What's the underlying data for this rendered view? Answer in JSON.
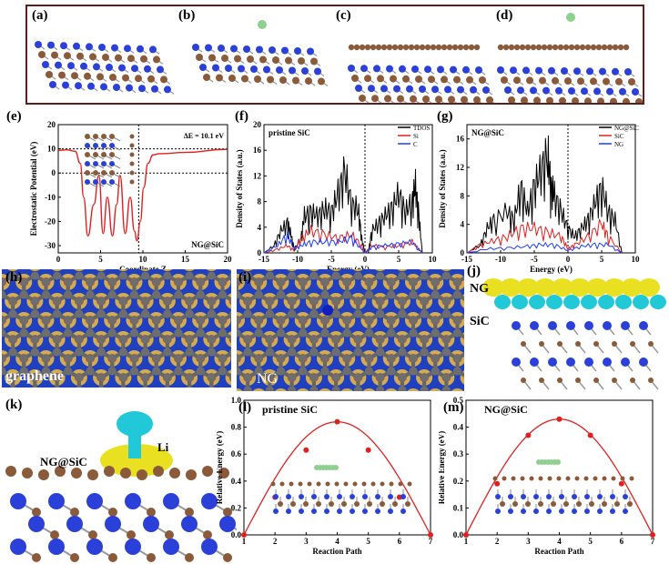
{
  "panels": {
    "a": "(a)",
    "b": "(b)",
    "c": "(c)",
    "d": "(d)",
    "e": "(e)",
    "f": "(f)",
    "g": "(g)",
    "h": "(h)",
    "i": "(i)",
    "j": "(j)",
    "k": "(k)",
    "l": "(l)",
    "m": "(m)"
  },
  "labels": {
    "graphene": "graphene",
    "ng_i": "NG",
    "ng_j": "NG",
    "sic_j": "SiC",
    "li": "Li",
    "ngsic_k": "NG@SiC"
  },
  "colors": {
    "frame": "#5a2020",
    "curve_red": "#e02020",
    "tdos": "#000000",
    "si": "#e02020",
    "c": "#1a3cff",
    "bg_blue": "#2040c0",
    "atom_blue": "#2a40d8",
    "atom_brown": "#8a5a3a",
    "isosurface_yellow": "#e8e020",
    "isosurface_cyan": "#20c8d8"
  },
  "chart_data": [
    {
      "id": "e",
      "type": "line",
      "xlabel": "Coordinate Z",
      "ylabel": "Electrostatic Potential (eV)",
      "annotation": "ΔE = 10.1 eV",
      "label": "NG@SiC",
      "xlim": [
        0,
        20
      ],
      "ylim": [
        -33,
        20
      ],
      "xticks": [
        "0",
        "5",
        "10",
        "15",
        "20"
      ],
      "yticks": [
        "-30",
        "-20",
        "-10",
        "0",
        "10",
        "20"
      ],
      "hlines": [
        10,
        0
      ],
      "vline": 9.5,
      "x": [
        0,
        1,
        2,
        2.6,
        3,
        3.5,
        4.2,
        4.8,
        5.3,
        5.8,
        6.4,
        6.9,
        7.3,
        7.9,
        8.5,
        9.0,
        9.3,
        9.7,
        10.1,
        10.6,
        11.2,
        12,
        15,
        20
      ],
      "y": [
        9.3,
        9.6,
        9,
        4,
        -10,
        -26,
        -13,
        -1,
        -25,
        -10,
        -26,
        -13,
        -1,
        -25,
        -10,
        -24,
        -28,
        -20,
        -6,
        4,
        7.5,
        8,
        8.5,
        9.8
      ]
    },
    {
      "id": "f",
      "type": "line",
      "title": "pristine SiC",
      "xlabel": "Energy (eV)",
      "ylabel": "Density of States (a.u.)",
      "xlim": [
        -15,
        10
      ],
      "ylim": [
        0,
        20
      ],
      "xticks": [
        "-15",
        "-10",
        "-5",
        "0",
        "5",
        "10"
      ],
      "yticks": [
        "0",
        "4",
        "8",
        "12",
        "16",
        "20"
      ],
      "legend": [
        "TDOS",
        "Si",
        "C"
      ],
      "series": [
        {
          "name": "TDOS",
          "x": [
            -15,
            -13.5,
            -12.5,
            -11.5,
            -11,
            -10.5,
            -9.5,
            -9,
            -8,
            -7,
            -6,
            -5,
            -4,
            -3,
            -2,
            -1,
            -0.5,
            0,
            0.5,
            1,
            2,
            3,
            4,
            5,
            6,
            7,
            7.5,
            8,
            8.5
          ],
          "y": [
            0,
            1,
            3,
            4,
            2.5,
            0.5,
            2,
            5,
            5.5,
            5,
            6,
            5.5,
            8,
            11,
            6.5,
            6,
            2,
            0,
            0,
            3,
            4,
            5,
            6,
            8,
            5.5,
            7,
            9,
            5,
            0
          ]
        },
        {
          "name": "Si",
          "x": [
            -15,
            -13,
            -11.5,
            -10.5,
            -9.5,
            -8,
            -6,
            -4,
            -2,
            -0.5,
            0,
            1,
            3,
            5,
            7,
            8.5
          ],
          "y": [
            0,
            0.5,
            1,
            0.3,
            2,
            3,
            2.5,
            2,
            2.5,
            1,
            0,
            1,
            0.8,
            1,
            1.5,
            0
          ]
        },
        {
          "name": "C",
          "x": [
            -15,
            -13,
            -11.5,
            -10.5,
            -9.5,
            -8,
            -6,
            -4,
            -2,
            -0.5,
            0,
            1,
            3,
            5,
            7,
            8.5
          ],
          "y": [
            0,
            1,
            2.5,
            0.5,
            1,
            1.5,
            1.5,
            1.5,
            2,
            0.5,
            0,
            0.8,
            1,
            1.2,
            1.5,
            0
          ]
        }
      ]
    },
    {
      "id": "g",
      "type": "line",
      "title": "NG@SiC",
      "xlabel": "Energy (eV)",
      "ylabel": "Density of States (a.u.)",
      "xlim": [
        -15,
        10
      ],
      "ylim": [
        0,
        18
      ],
      "xticks": [
        "-15",
        "-10",
        "-5",
        "0",
        "5",
        "10"
      ],
      "yticks": [
        "0",
        "4",
        "8",
        "12",
        "16"
      ],
      "legend": [
        "NG@SiC",
        "SiC",
        "NG"
      ],
      "series": [
        {
          "name": "NG@SiC",
          "x": [
            -15,
            -13,
            -12,
            -11,
            -9,
            -8,
            -7,
            -6,
            -5,
            -4,
            -3,
            -2.5,
            -2,
            -1,
            0,
            1,
            2,
            3,
            4,
            5,
            6,
            7,
            8
          ],
          "y": [
            0,
            1,
            3,
            4,
            5,
            4,
            8,
            5,
            8,
            10,
            12,
            8,
            7,
            5,
            3,
            2,
            3,
            4,
            6,
            8,
            5,
            4,
            0
          ]
        },
        {
          "name": "SiC",
          "x": [
            -15,
            -13,
            -11,
            -9,
            -7,
            -5,
            -3,
            -1,
            0,
            1,
            3,
            5,
            6,
            8
          ],
          "y": [
            0,
            1,
            1.5,
            2,
            3,
            3,
            2.5,
            2,
            0.5,
            1,
            2,
            3.5,
            2,
            0
          ]
        },
        {
          "name": "NG",
          "x": [
            -15,
            -12,
            -9,
            -6,
            -4,
            -2,
            0,
            2,
            4,
            6,
            8
          ],
          "y": [
            0,
            0.5,
            0.6,
            0.8,
            1,
            1,
            0.3,
            0.8,
            1,
            1,
            0
          ]
        }
      ]
    },
    {
      "id": "l",
      "type": "line",
      "title": "pristine SiC",
      "xlabel": "Reaction Path",
      "ylabel": "Relative Energy (eV)",
      "xlim": [
        1,
        7
      ],
      "ylim": [
        0,
        1.0
      ],
      "xticks": [
        "1",
        "2",
        "3",
        "4",
        "5",
        "6",
        "7"
      ],
      "yticks": [
        "0.0",
        "0.2",
        "0.4",
        "0.6",
        "0.8",
        "1.0"
      ],
      "x": [
        1,
        2,
        3,
        4,
        5,
        6,
        7
      ],
      "y": [
        0.0,
        0.28,
        0.63,
        0.84,
        0.63,
        0.28,
        0.0
      ]
    },
    {
      "id": "m",
      "type": "line",
      "title": "NG@SiC",
      "xlabel": "Reaction Path",
      "ylabel": "Relative Energy (eV)",
      "xlim": [
        1,
        7
      ],
      "ylim": [
        0,
        0.5
      ],
      "xticks": [
        "1",
        "2",
        "3",
        "4",
        "5",
        "6",
        "7"
      ],
      "yticks": [
        "0.0",
        "0.1",
        "0.2",
        "0.3",
        "0.4",
        "0.5"
      ],
      "x": [
        1,
        2,
        3,
        4,
        5,
        6,
        7
      ],
      "y": [
        0.0,
        0.19,
        0.37,
        0.43,
        0.37,
        0.19,
        0.0
      ]
    }
  ]
}
